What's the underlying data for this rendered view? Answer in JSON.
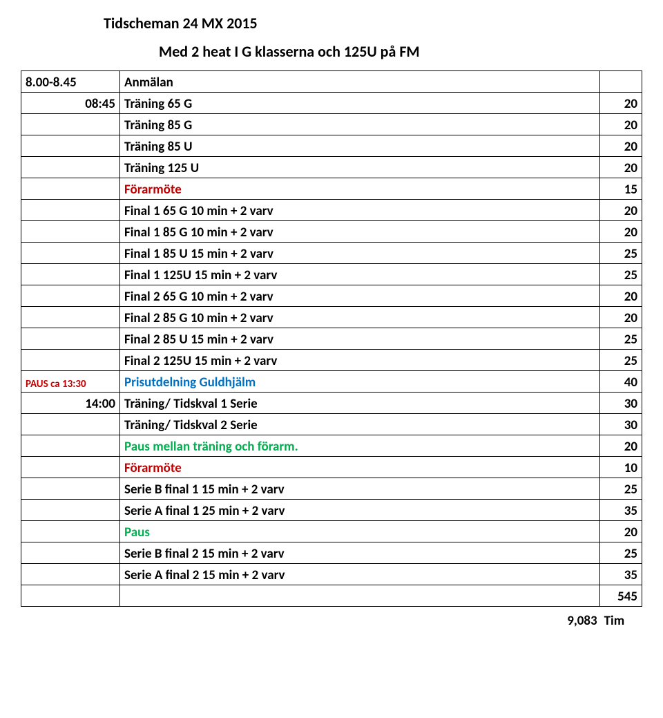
{
  "title1": "Tidscheman 24 MX 2015",
  "title2": "Med 2 heat I G klasserna och 125U på FM",
  "colors": {
    "red": "#c00000",
    "blue": "#0070c0",
    "green": "#00b050",
    "black": "#000000"
  },
  "rows": [
    {
      "c1": "8.00-8.45",
      "c2": "Anmälan",
      "c3": "",
      "bold": true,
      "align1": "left"
    },
    {
      "c1": "08:45",
      "c2": "Träning 65 G",
      "c3": "20",
      "bold": true,
      "align1": "right"
    },
    {
      "c1": "",
      "c2": "Träning 85 G",
      "c3": "20",
      "bold": true
    },
    {
      "c1": "",
      "c2": "Träning 85 U",
      "c3": "20",
      "bold": true
    },
    {
      "c1": "",
      "c2": "Träning 125 U",
      "c3": "20",
      "bold": true
    },
    {
      "c1": "",
      "c2": "Förarmöte",
      "c3": "15",
      "bold": true,
      "color": "red"
    },
    {
      "c1": "",
      "c2": "Final 1 65 G  10 min + 2 varv",
      "c3": "20",
      "bold": true
    },
    {
      "c1": "",
      "c2": "Final 1 85 G  10 min + 2 varv",
      "c3": "20",
      "bold": true
    },
    {
      "c1": "",
      "c2": "Final 1 85 U  15 min + 2 varv",
      "c3": "25",
      "bold": true
    },
    {
      "c1": "",
      "c2": "Final 1  125U  15 min + 2 varv",
      "c3": "25",
      "bold": true
    },
    {
      "c1": "",
      "c2": "Final 2 65 G  10 min + 2 varv",
      "c3": "20",
      "bold": true
    },
    {
      "c1": "",
      "c2": "Final 2 85 G  10 min + 2 varv",
      "c3": "20",
      "bold": true
    },
    {
      "c1": "",
      "c2": "Final 2 85 U  15 min + 2 varv",
      "c3": "25",
      "bold": true
    },
    {
      "c1": "",
      "c2": "Final 2  125U  15 min + 2 varv",
      "c3": "25",
      "bold": true
    },
    {
      "c1": "PAUS ca 13:30",
      "c2": "Prisutdelning Guldhjälm",
      "c3": "40",
      "bold": true,
      "color": "blue",
      "c1color": "red",
      "c1small": true
    },
    {
      "c1": "14:00",
      "c2": "Träning/ Tidskval 1 Serie",
      "c3": "30",
      "bold": true,
      "align1": "right"
    },
    {
      "c1": "",
      "c2": "Träning/ Tidskval 2 Serie",
      "c3": "30",
      "bold": true
    },
    {
      "c1": "",
      "c2": "Paus mellan träning och förarm.",
      "c3": "20",
      "bold": true,
      "color": "green"
    },
    {
      "c1": "",
      "c2": "Förarmöte",
      "c3": "10",
      "bold": true,
      "color": "red"
    },
    {
      "c1": "",
      "c2": "Serie B final 1  15 min + 2 varv",
      "c3": "25",
      "bold": true
    },
    {
      "c1": "",
      "c2": "Serie A final 1  25 min + 2 varv",
      "c3": "35",
      "bold": true
    },
    {
      "c1": "",
      "c2": "Paus",
      "c3": "20",
      "bold": true,
      "color": "green"
    },
    {
      "c1": "",
      "c2": "Serie B final 2 15 min + 2 varv",
      "c3": "25",
      "bold": true
    },
    {
      "c1": "",
      "c2": "Serie A final 2 15 min + 2 varv",
      "c3": "35",
      "bold": true
    },
    {
      "c1": "",
      "c2": "",
      "c3": "545",
      "bold": true
    }
  ],
  "tim": {
    "label": "Tim",
    "value": "9,083"
  }
}
